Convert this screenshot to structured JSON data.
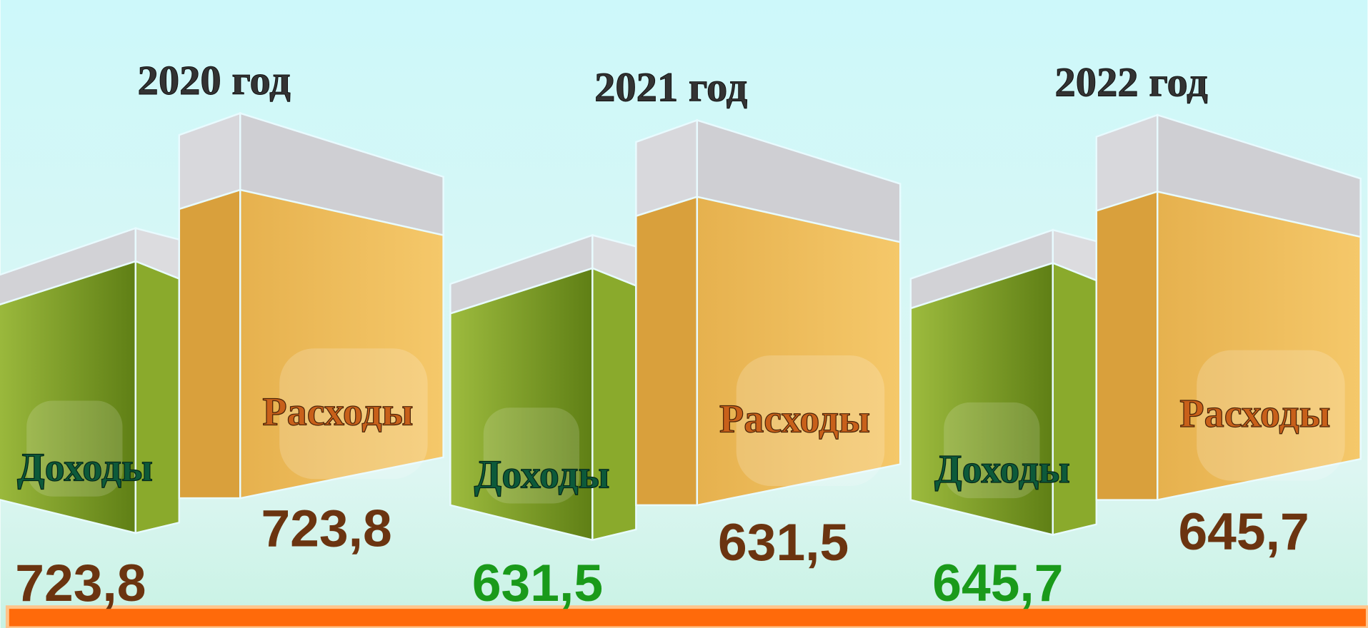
{
  "years": [
    {
      "title": "2020 год",
      "income": {
        "label": "Доходы",
        "value": "723,8",
        "color": "#6b3410"
      },
      "expense": {
        "label": "Расходы",
        "value": "723,8",
        "color": "#6b3410"
      }
    },
    {
      "title": "2021 год",
      "income": {
        "label": "Доходы",
        "value": "631,5",
        "color": "#1a9a1a"
      },
      "expense": {
        "label": "Расходы",
        "value": "631,5",
        "color": "#6b3410"
      }
    },
    {
      "title": "2022 год",
      "income": {
        "label": "Доходы",
        "value": "645,7",
        "color": "#1a9a1a"
      },
      "expense": {
        "label": "Расходы",
        "value": "645,7",
        "color": "#6b3410"
      }
    }
  ]
}
